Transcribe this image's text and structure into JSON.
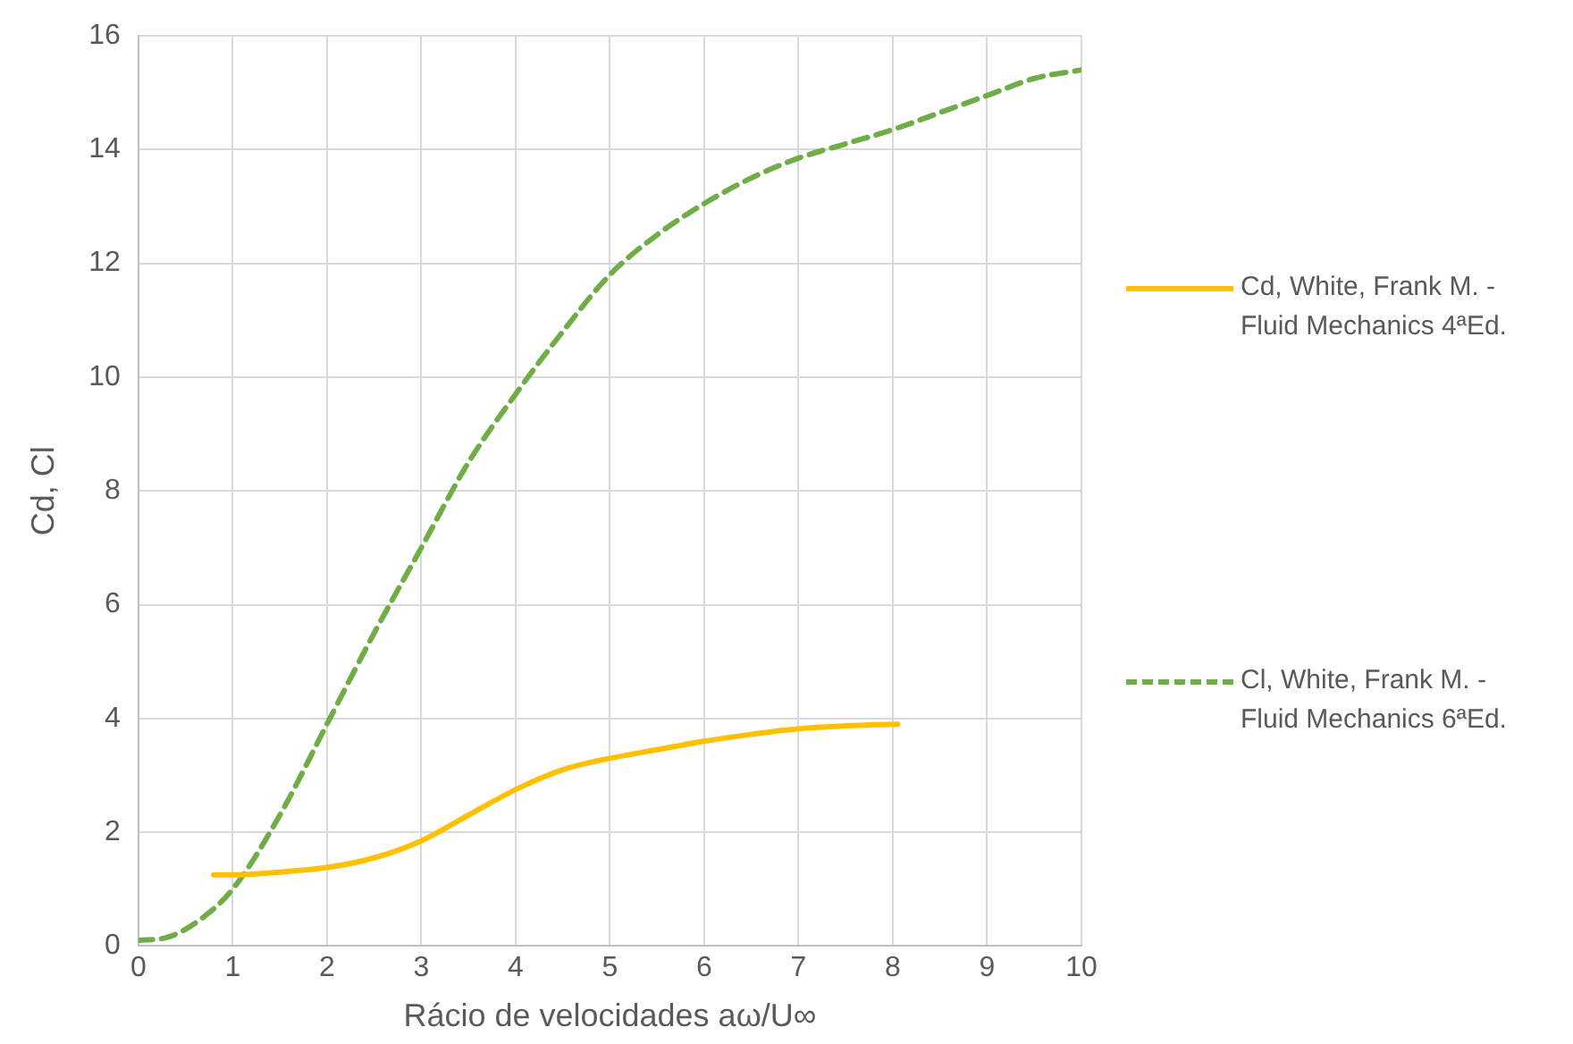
{
  "chart_data": {
    "type": "line",
    "xlabel": "Rácio de velocidades aω/U∞",
    "ylabel": "Cd, Cl",
    "xlim": [
      0,
      10
    ],
    "xticks": [
      0,
      1,
      2,
      3,
      4,
      5,
      6,
      7,
      8,
      9,
      10
    ],
    "ylim": [
      0,
      16
    ],
    "yticks": [
      0,
      2,
      4,
      6,
      8,
      10,
      12,
      14,
      16
    ],
    "grid": true,
    "legend": "right",
    "marker": "none",
    "series": [
      {
        "name": "Cd, White, Frank M. - Fluid Mechanics 4ªEd.",
        "color": "#ffc000",
        "line_style": "solid",
        "x": [
          0.8,
          1,
          1.5,
          2,
          2.5,
          3,
          3.5,
          4,
          4.5,
          5,
          5.5,
          6,
          6.5,
          7,
          7.5,
          8.05
        ],
        "values": [
          1.25,
          1.25,
          1.3,
          1.38,
          1.55,
          1.85,
          2.3,
          2.75,
          3.1,
          3.3,
          3.45,
          3.6,
          3.72,
          3.82,
          3.87,
          3.9
        ]
      },
      {
        "name": "Cl, White, Frank M. - Fluid Mechanics 6ªEd.",
        "color": "#70ad47",
        "line_style": "dashed",
        "x": [
          0,
          0.3,
          0.6,
          1,
          1.5,
          2,
          2.5,
          3,
          3.5,
          4,
          4.5,
          5,
          5.5,
          6,
          6.5,
          7,
          7.5,
          8,
          8.5,
          9,
          9.5,
          10
        ],
        "values": [
          0.1,
          0.15,
          0.4,
          1.0,
          2.3,
          3.9,
          5.5,
          7.0,
          8.5,
          9.7,
          10.8,
          11.8,
          12.5,
          13.05,
          13.5,
          13.85,
          14.1,
          14.35,
          14.65,
          14.95,
          15.25,
          15.4
        ]
      }
    ]
  }
}
